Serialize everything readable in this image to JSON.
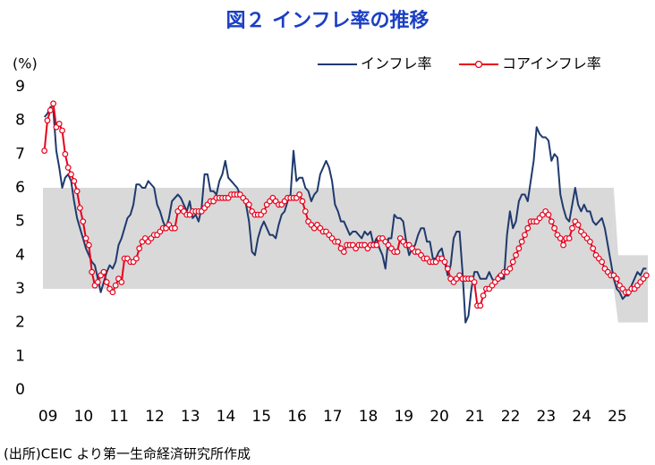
{
  "chart_data": {
    "type": "line",
    "title": "図２ インフレ率の推移",
    "y_unit": "(%)",
    "source": "(出所)CEIC より第一生命経済研究所作成",
    "ylim": [
      0,
      9
    ],
    "yticks": [
      0,
      1,
      2,
      3,
      4,
      5,
      6,
      7,
      8,
      9
    ],
    "bands": [
      {
        "from": "09",
        "to": "25",
        "ylim": [
          3,
          6
        ],
        "color": "#d9d9d9"
      },
      {
        "from": "25",
        "ylim": [
          2,
          4
        ],
        "color": "#d9d9d9"
      }
    ],
    "categories": [
      "09",
      null,
      null,
      null,
      null,
      null,
      null,
      null,
      null,
      null,
      null,
      null,
      "10",
      null,
      null,
      null,
      null,
      null,
      null,
      null,
      null,
      null,
      null,
      null,
      "11",
      null,
      null,
      null,
      null,
      null,
      null,
      null,
      null,
      null,
      null,
      null,
      "12",
      null,
      null,
      null,
      null,
      null,
      null,
      null,
      null,
      null,
      null,
      null,
      "13",
      null,
      null,
      null,
      null,
      null,
      null,
      null,
      null,
      null,
      null,
      null,
      "14",
      null,
      null,
      null,
      null,
      null,
      null,
      null,
      null,
      null,
      null,
      null,
      "15",
      null,
      null,
      null,
      null,
      null,
      null,
      null,
      null,
      null,
      null,
      null,
      "16",
      null,
      null,
      null,
      null,
      null,
      null,
      null,
      null,
      null,
      null,
      null,
      "17",
      null,
      null,
      null,
      null,
      null,
      null,
      null,
      null,
      null,
      null,
      null,
      "18",
      null,
      null,
      null,
      null,
      null,
      null,
      null,
      null,
      null,
      null,
      null,
      "19",
      null,
      null,
      null,
      null,
      null,
      null,
      null,
      null,
      null,
      null,
      null,
      "20",
      null,
      null,
      null,
      null,
      null,
      null,
      null,
      null,
      null,
      null,
      null,
      "21",
      null,
      null,
      null,
      null,
      null,
      null,
      null,
      null,
      null,
      null,
      null,
      "22",
      null,
      null,
      null,
      null,
      null,
      null,
      null,
      null,
      null,
      null,
      null,
      "23",
      null,
      null,
      null,
      null,
      null,
      null,
      null,
      null,
      null,
      null,
      null,
      "24",
      null,
      null,
      null,
      null,
      null,
      null,
      null,
      null,
      null,
      null,
      null,
      "25",
      null,
      null,
      null,
      null,
      null,
      null,
      null,
      null,
      null,
      null,
      null
    ],
    "series": [
      {
        "name": "インフレ率",
        "color": "#1f3a6e",
        "markers": false,
        "values": [
          8.1,
          8.2,
          8.4,
          8.3,
          7.1,
          6.6,
          6.0,
          6.3,
          6.4,
          6.2,
          5.6,
          5.1,
          4.8,
          4.5,
          4.2,
          4.0,
          3.8,
          3.7,
          3.3,
          2.9,
          3.2,
          3.5,
          3.7,
          3.6,
          3.8,
          4.3,
          4.5,
          4.8,
          5.1,
          5.2,
          5.5,
          6.1,
          6.1,
          6.0,
          6.0,
          6.2,
          6.1,
          6.0,
          5.5,
          5.3,
          5.0,
          4.8,
          5.1,
          5.6,
          5.7,
          5.8,
          5.7,
          5.5,
          5.3,
          5.6,
          5.1,
          5.2,
          5.0,
          5.4,
          6.4,
          6.4,
          5.9,
          5.9,
          5.8,
          6.2,
          6.4,
          6.8,
          6.3,
          6.2,
          6.1,
          6.0,
          5.8,
          5.7,
          5.5,
          5.0,
          4.1,
          4.0,
          4.5,
          4.8,
          5.0,
          4.8,
          4.6,
          4.6,
          4.5,
          4.9,
          5.2,
          5.3,
          5.6,
          5.8,
          7.1,
          6.2,
          6.3,
          6.3,
          6.0,
          5.9,
          5.6,
          5.8,
          5.9,
          6.4,
          6.6,
          6.8,
          6.6,
          6.2,
          5.5,
          5.3,
          5.0,
          5.0,
          4.8,
          4.6,
          4.7,
          4.7,
          4.6,
          4.5,
          4.7,
          4.6,
          4.7,
          4.3,
          4.5,
          4.2,
          4.0,
          3.6,
          4.5,
          4.5,
          5.2,
          5.1,
          5.1,
          5.0,
          4.4,
          4.0,
          4.2,
          4.3,
          4.6,
          4.8,
          4.8,
          4.4,
          4.4,
          3.9,
          3.9,
          4.1,
          4.2,
          3.8,
          3.4,
          3.7,
          4.5,
          4.7,
          4.7,
          3.5,
          2.0,
          2.2,
          3.0,
          3.5,
          3.5,
          3.3,
          3.3,
          3.3,
          3.5,
          3.3,
          3.2,
          3.4,
          3.3,
          3.3,
          4.6,
          5.3,
          4.8,
          5.0,
          5.6,
          5.8,
          5.8,
          5.6,
          6.2,
          6.8,
          7.8,
          7.6,
          7.5,
          7.5,
          7.4,
          6.8,
          7.0,
          6.9,
          5.8,
          5.4,
          5.1,
          5.0,
          5.5,
          6.0,
          5.5,
          5.3,
          5.5,
          5.3,
          5.3,
          5.0,
          4.9,
          5.0,
          5.1,
          4.8,
          4.3,
          3.8,
          3.3,
          3.0,
          2.9,
          2.7,
          2.8,
          2.8,
          3.1,
          3.3,
          3.5,
          3.4,
          3.6,
          3.6
        ]
      },
      {
        "name": "コアインフレ率",
        "color": "#e8001c",
        "markers": true,
        "values": [
          7.1,
          8.0,
          8.3,
          8.5,
          7.8,
          7.9,
          7.7,
          7.0,
          6.6,
          6.4,
          6.2,
          5.9,
          5.4,
          5.0,
          4.5,
          4.3,
          3.5,
          3.1,
          3.2,
          3.4,
          3.5,
          3.2,
          3.0,
          2.9,
          3.1,
          3.3,
          3.2,
          3.9,
          3.9,
          3.8,
          3.8,
          3.9,
          4.2,
          4.4,
          4.5,
          4.4,
          4.5,
          4.6,
          4.6,
          4.7,
          4.8,
          4.8,
          4.9,
          4.8,
          4.8,
          5.3,
          5.4,
          5.3,
          5.2,
          5.2,
          5.3,
          5.3,
          5.3,
          5.3,
          5.4,
          5.5,
          5.6,
          5.6,
          5.7,
          5.7,
          5.7,
          5.7,
          5.7,
          5.8,
          5.8,
          5.8,
          5.8,
          5.7,
          5.6,
          5.5,
          5.3,
          5.2,
          5.2,
          5.2,
          5.3,
          5.5,
          5.6,
          5.7,
          5.6,
          5.5,
          5.5,
          5.6,
          5.7,
          5.7,
          5.7,
          5.7,
          5.8,
          5.6,
          5.3,
          5.0,
          4.9,
          4.8,
          4.9,
          4.8,
          4.7,
          4.7,
          4.6,
          4.5,
          4.4,
          4.4,
          4.2,
          4.1,
          4.3,
          4.3,
          4.3,
          4.2,
          4.3,
          4.3,
          4.3,
          4.2,
          4.3,
          4.3,
          4.3,
          4.5,
          4.5,
          4.4,
          4.3,
          4.2,
          4.1,
          4.1,
          4.5,
          4.4,
          4.3,
          4.3,
          4.2,
          4.1,
          4.1,
          4.0,
          3.9,
          3.9,
          3.8,
          3.8,
          3.8,
          3.9,
          3.9,
          3.8,
          3.6,
          3.3,
          3.2,
          3.3,
          3.4,
          3.3,
          3.3,
          3.3,
          3.3,
          3.2,
          2.5,
          2.5,
          2.8,
          3.0,
          3.0,
          3.1,
          3.2,
          3.3,
          3.4,
          3.5,
          3.5,
          3.6,
          3.8,
          4.0,
          4.2,
          4.4,
          4.6,
          4.8,
          5.0,
          5.0,
          5.0,
          5.1,
          5.2,
          5.3,
          5.2,
          5.0,
          4.8,
          4.6,
          4.5,
          4.3,
          4.5,
          4.5,
          4.8,
          5.0,
          4.9,
          4.7,
          4.6,
          4.5,
          4.4,
          4.2,
          4.0,
          3.9,
          3.8,
          3.6,
          3.5,
          3.4,
          3.4,
          3.3,
          3.1,
          3.0,
          2.9,
          2.9,
          3.0,
          3.0,
          3.1,
          3.2,
          3.3,
          3.4
        ]
      }
    ]
  }
}
